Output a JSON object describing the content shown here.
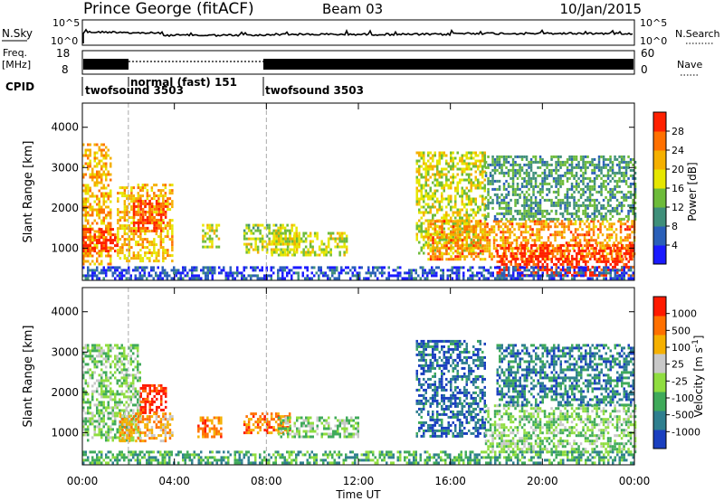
{
  "header": {
    "station": "Prince George (fitACF)",
    "beam": "Beam 03",
    "date": "10/Jan/2015"
  },
  "top_panels": {
    "nsky_label": "N.Sky",
    "nsky_ticks": [
      "10^5",
      "10^0"
    ],
    "nsearch_label": "N.Search",
    "freq_label_1": "Freq.",
    "freq_label_2": "[MHz]",
    "freq_ticks": [
      "18",
      "8"
    ],
    "nave_ticks": [
      "60",
      "0"
    ],
    "nave_label": "Nave",
    "cpid_label": "CPID",
    "cpid_segments": [
      {
        "name": "twofsound 3503",
        "start_hour": 0.0,
        "end_hour": 2.0
      },
      {
        "name": "normal (fast) 151",
        "start_hour": 2.0,
        "end_hour": 8.0
      },
      {
        "name": "twofsound 3503",
        "start_hour": 8.0,
        "end_hour": 24.0
      }
    ]
  },
  "chart_data": [
    {
      "type": "heatmap",
      "title": "",
      "xlabel": "Time UT",
      "ylabel": "Slant Range [km]",
      "x_ticks": [
        "00:00",
        "04:00",
        "08:00",
        "12:00",
        "16:00",
        "20:00",
        "00:00"
      ],
      "xlim_hours": [
        0,
        24
      ],
      "y_ticks": [
        1000,
        2000,
        3000,
        4000
      ],
      "ylim_km": [
        200,
        4600
      ],
      "colorbar_label": "Power [dB]",
      "colorbar_ticks": [
        "4",
        "8",
        "12",
        "16",
        "20",
        "24",
        "28"
      ],
      "colorscale": [
        "#1a1aff",
        "#2a5fb8",
        "#3f8f7a",
        "#6dbb3a",
        "#e6e600",
        "#f5b000",
        "#ff7000",
        "#ff2000"
      ],
      "gap_markers_hours": [
        2.0,
        8.0
      ],
      "regions": [
        {
          "t0": 0.0,
          "t1": 1.2,
          "r0": 600,
          "r1": 3600,
          "level": 0.7
        },
        {
          "t0": 0.0,
          "t1": 1.5,
          "r0": 900,
          "r1": 1500,
          "level": 0.95
        },
        {
          "t0": 1.5,
          "t1": 3.9,
          "r0": 700,
          "r1": 2600,
          "level": 0.65
        },
        {
          "t0": 2.2,
          "t1": 3.6,
          "r0": 1400,
          "r1": 2200,
          "level": 0.9
        },
        {
          "t0": 5.2,
          "t1": 5.9,
          "r0": 1000,
          "r1": 1600,
          "level": 0.55
        },
        {
          "t0": 7.0,
          "t1": 9.3,
          "r0": 900,
          "r1": 1600,
          "level": 0.5
        },
        {
          "t0": 8.2,
          "t1": 11.5,
          "r0": 800,
          "r1": 1400,
          "level": 0.55
        },
        {
          "t0": 14.5,
          "t1": 17.5,
          "r0": 900,
          "r1": 3400,
          "level": 0.55
        },
        {
          "t0": 15.0,
          "t1": 24.0,
          "r0": 700,
          "r1": 1700,
          "level": 0.75
        },
        {
          "t0": 18.0,
          "t1": 24.0,
          "r0": 300,
          "r1": 1100,
          "level": 0.95
        },
        {
          "t0": 17.5,
          "t1": 24.0,
          "r0": 1700,
          "r1": 3300,
          "level": 0.35
        },
        {
          "t0": 0.0,
          "t1": 24.0,
          "r0": 250,
          "r1": 550,
          "level": 0.15
        }
      ]
    },
    {
      "type": "heatmap",
      "title": "",
      "xlabel": "Time UT",
      "ylabel": "Slant Range [km]",
      "x_ticks": [
        "00:00",
        "04:00",
        "08:00",
        "12:00",
        "16:00",
        "20:00",
        "00:00"
      ],
      "xlim_hours": [
        0,
        24
      ],
      "y_ticks": [
        1000,
        2000,
        3000,
        4000
      ],
      "ylim_km": [
        200,
        4600
      ],
      "colorbar_label": "Velocity [m s^-1]",
      "colorbar_ticks": [
        "1000",
        "500",
        "100",
        "25",
        "-25",
        "-100",
        "-500",
        "-1000"
      ],
      "colorscale": [
        "#1a3fbf",
        "#2f7f8f",
        "#3faa5a",
        "#8fdd3f",
        "#c8c8c8",
        "#f5b000",
        "#ff7000",
        "#ff1a00"
      ],
      "gap_markers_hours": [
        2.0,
        8.0
      ],
      "regions": [
        {
          "t0": 0.0,
          "t1": 2.5,
          "r0": 800,
          "r1": 3200,
          "level": 0.42
        },
        {
          "t0": 2.5,
          "t1": 3.6,
          "r0": 1500,
          "r1": 2200,
          "level": 0.95
        },
        {
          "t0": 1.6,
          "t1": 3.9,
          "r0": 800,
          "r1": 1500,
          "level": 0.7
        },
        {
          "t0": 5.0,
          "t1": 6.0,
          "r0": 900,
          "r1": 1400,
          "level": 0.78
        },
        {
          "t0": 7.0,
          "t1": 9.0,
          "r0": 1000,
          "r1": 1500,
          "level": 0.78
        },
        {
          "t0": 8.5,
          "t1": 12.0,
          "r0": 900,
          "r1": 1400,
          "level": 0.42
        },
        {
          "t0": 14.5,
          "t1": 17.5,
          "r0": 900,
          "r1": 3300,
          "level": 0.15
        },
        {
          "t0": 17.5,
          "t1": 24.0,
          "r0": 500,
          "r1": 1700,
          "level": 0.42
        },
        {
          "t0": 18.0,
          "t1": 24.0,
          "r0": 1700,
          "r1": 3200,
          "level": 0.2
        },
        {
          "t0": 0.0,
          "t1": 24.0,
          "r0": 250,
          "r1": 550,
          "level": 0.3
        }
      ]
    }
  ]
}
